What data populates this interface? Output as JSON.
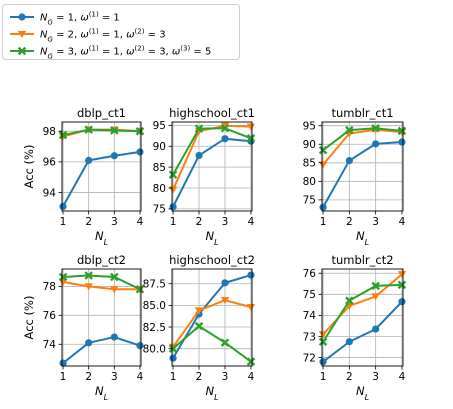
{
  "legend": {
    "entries": [
      {
        "label": "N_G = 1, ω(1) = 1",
        "color": "#1f77b4",
        "marker": "circle"
      },
      {
        "label": "N_G = 2, ω(1) = 1, ω(2) = 3",
        "color": "#ff7f0e",
        "marker": "triangle-down"
      },
      {
        "label": "N_G = 3, ω(1) = 1, ω(2) = 3, ω(3) = 5",
        "color": "#2ca02c",
        "marker": "x"
      }
    ],
    "placement": "top-left"
  },
  "chart_data": [
    {
      "type": "line",
      "title": "dblp_ct1",
      "xlabel": "N_L",
      "ylabel": "Acc (%)",
      "x": [
        1,
        2,
        3,
        4
      ],
      "xticks": [
        "1",
        "2",
        "3",
        "4"
      ],
      "ylim": [
        92.8,
        98.6
      ],
      "yticks": [
        94,
        96,
        98
      ],
      "grid": true,
      "series": [
        {
          "legend_index": 0,
          "values": [
            93.1,
            96.1,
            96.4,
            96.65
          ]
        },
        {
          "legend_index": 1,
          "values": [
            97.65,
            98.1,
            98.1,
            98.0
          ]
        },
        {
          "legend_index": 2,
          "values": [
            97.75,
            98.1,
            98.05,
            98.0
          ]
        }
      ]
    },
    {
      "type": "line",
      "title": "highschool_ct1",
      "xlabel": "N_L",
      "ylabel": "",
      "x": [
        1,
        2,
        3,
        4
      ],
      "xticks": [
        "1",
        "2",
        "3",
        "4"
      ],
      "ylim": [
        74.5,
        95.8
      ],
      "yticks": [
        75,
        80,
        85,
        90,
        95
      ],
      "grid": true,
      "series": [
        {
          "legend_index": 0,
          "values": [
            75.5,
            87.8,
            91.8,
            91.2
          ]
        },
        {
          "legend_index": 1,
          "values": [
            79.6,
            93.6,
            94.9,
            94.7
          ]
        },
        {
          "legend_index": 2,
          "values": [
            83.2,
            94.2,
            94.3,
            91.9
          ]
        }
      ]
    },
    {
      "type": "line",
      "title": "tumblr_ct1",
      "xlabel": "N_L",
      "ylabel": "",
      "x": [
        1,
        2,
        3,
        4
      ],
      "xticks": [
        "1",
        "2",
        "3",
        "4"
      ],
      "ylim": [
        72.0,
        96.0
      ],
      "yticks": [
        75,
        80,
        85,
        90,
        95
      ],
      "grid": true,
      "series": [
        {
          "legend_index": 0,
          "values": [
            73.0,
            85.6,
            90.1,
            90.6
          ]
        },
        {
          "legend_index": 1,
          "values": [
            84.5,
            92.9,
            93.9,
            93.3
          ]
        },
        {
          "legend_index": 2,
          "values": [
            88.4,
            93.8,
            94.3,
            93.6
          ]
        }
      ]
    },
    {
      "type": "line",
      "title": "dblp_ct2",
      "xlabel": "N_L",
      "ylabel": "Acc (%)",
      "x": [
        1,
        2,
        3,
        4
      ],
      "xticks": [
        "1",
        "2",
        "3",
        "4"
      ],
      "ylim": [
        72.5,
        79.2
      ],
      "yticks": [
        74,
        76,
        78
      ],
      "grid": true,
      "series": [
        {
          "legend_index": 0,
          "values": [
            72.7,
            74.1,
            74.5,
            73.9
          ]
        },
        {
          "legend_index": 1,
          "values": [
            78.3,
            78.0,
            77.8,
            77.8
          ]
        },
        {
          "legend_index": 2,
          "values": [
            78.65,
            78.75,
            78.65,
            77.8
          ]
        }
      ]
    },
    {
      "type": "line",
      "title": "highschool_ct2",
      "xlabel": "N_L",
      "ylabel": "",
      "x": [
        1,
        2,
        3,
        4
      ],
      "xticks": [
        "1",
        "2",
        "3",
        "4"
      ],
      "ylim": [
        78.0,
        89.2
      ],
      "yticks": [
        "80.0",
        "82.5",
        "85.0",
        "87.5"
      ],
      "grid": true,
      "series": [
        {
          "legend_index": 0,
          "values": [
            78.9,
            84.0,
            87.6,
            88.5
          ]
        },
        {
          "legend_index": 1,
          "values": [
            80.2,
            84.4,
            85.6,
            84.8
          ]
        },
        {
          "legend_index": 2,
          "values": [
            80.0,
            82.6,
            80.7,
            78.5
          ]
        }
      ]
    },
    {
      "type": "line",
      "title": "tumblr_ct2",
      "xlabel": "N_L",
      "ylabel": "",
      "x": [
        1,
        2,
        3,
        4
      ],
      "xticks": [
        "1",
        "2",
        "3",
        "4"
      ],
      "ylim": [
        71.6,
        76.2
      ],
      "yticks": [
        72,
        73,
        74,
        75,
        76
      ],
      "grid": true,
      "series": [
        {
          "legend_index": 0,
          "values": [
            71.8,
            72.75,
            73.35,
            74.65
          ]
        },
        {
          "legend_index": 1,
          "values": [
            73.1,
            74.45,
            74.9,
            75.95
          ]
        },
        {
          "legend_index": 2,
          "values": [
            72.75,
            74.7,
            75.4,
            75.45
          ]
        }
      ]
    }
  ]
}
